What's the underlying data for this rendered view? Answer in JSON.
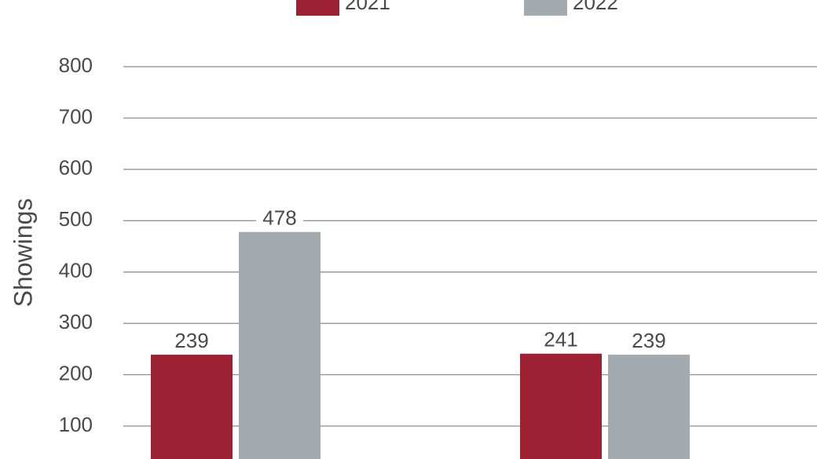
{
  "chart_data": {
    "type": "bar",
    "y_label": "Showings",
    "categories": [
      null,
      null
    ],
    "series": [
      {
        "name": "2021",
        "color": "#9b2133",
        "values": [
          239,
          241
        ]
      },
      {
        "name": "2022",
        "color": "#a3abb0",
        "values": [
          478,
          239
        ]
      }
    ],
    "ylim": [
      0,
      800
    ],
    "yticks": [
      100,
      200,
      300,
      400,
      500,
      600,
      700,
      800
    ],
    "grid": true
  }
}
